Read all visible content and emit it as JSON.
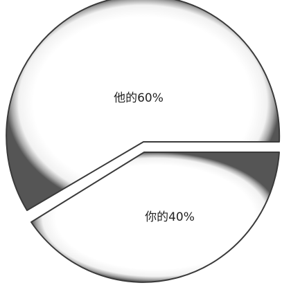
{
  "chart_data": {
    "type": "pie",
    "title": "",
    "legend": "none",
    "slices": [
      {
        "label": "他的60%",
        "value": 60
      },
      {
        "label": "你的40%",
        "value": 40
      }
    ]
  },
  "colors": {
    "fill": "#ffffff",
    "rim": "#555555",
    "edge": "#3a3a3a",
    "text": "#222222"
  }
}
